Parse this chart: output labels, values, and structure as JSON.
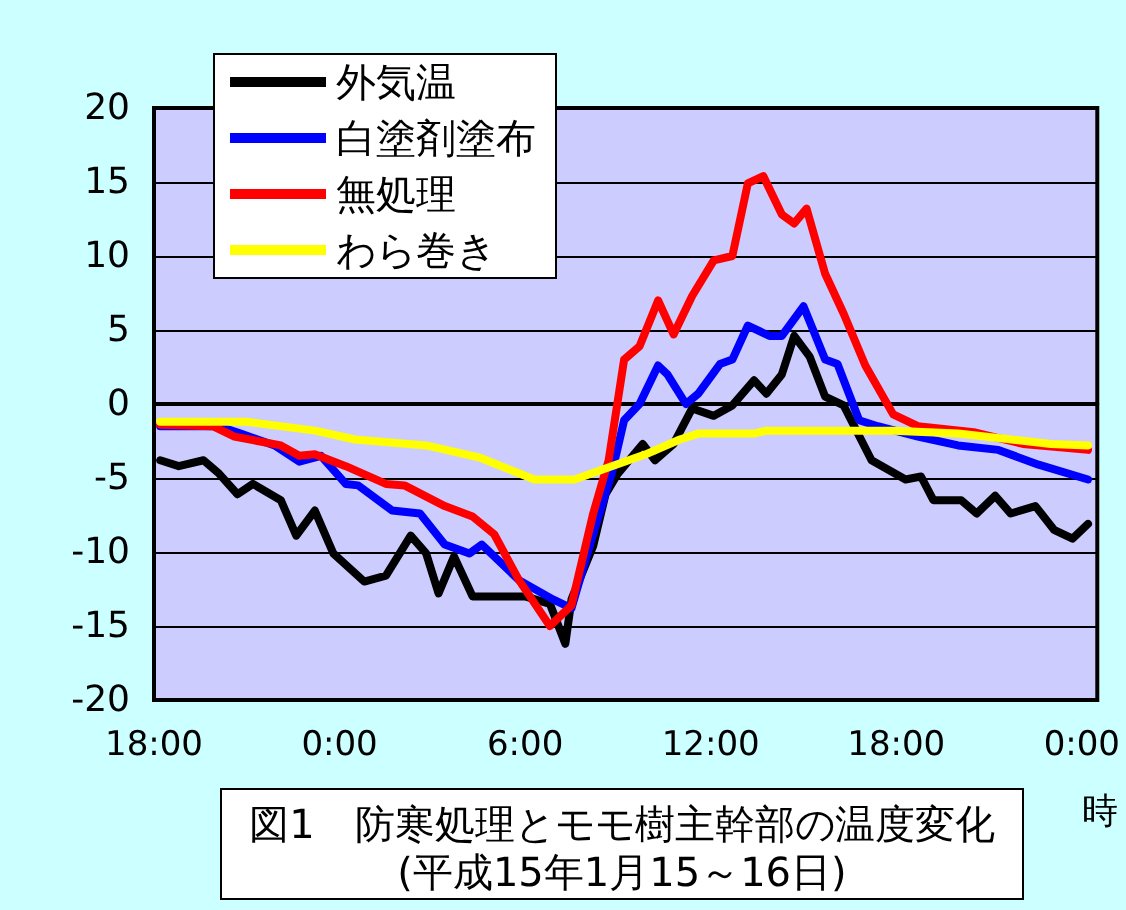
{
  "chart_data": {
    "type": "line",
    "title": "図1　防寒処理とモモ樹主幹部の温度変化",
    "subtitle": "(平成15年1月15～16日)",
    "xlabel": "時",
    "xlim": [
      "--01-15T18:00",
      "--01-17T00:30"
    ],
    "xticks": [
      {
        "value": "--01-15T18:00",
        "label": "18:00"
      },
      {
        "value": "--01-16T00:00",
        "label": "0:00"
      },
      {
        "value": "--01-16T06:00",
        "label": "6:00"
      },
      {
        "value": "--01-16T12:00",
        "label": "12:00"
      },
      {
        "value": "--01-16T18:00",
        "label": "18:00"
      },
      {
        "value": "--01-17T00:00",
        "label": "0:00"
      }
    ],
    "ylim": [
      -20,
      20
    ],
    "yticks": [
      -20,
      -15,
      -10,
      -5,
      0,
      5,
      10,
      15,
      20
    ],
    "grid": "y",
    "legend": "top left",
    "marker": "none",
    "line_style": "solid",
    "series": [
      {
        "name": "外気温",
        "color": "#000000",
        "x": [
          "--01-15T18:12",
          "--01-15T18:48",
          "--01-15T19:36",
          "--01-15T20:06",
          "--01-15T20:42",
          "--01-15T21:12",
          "--01-15T22:06",
          "--01-15T22:36",
          "--01-15T23:12",
          "--01-15T23:48",
          "--01-16T00:48",
          "--01-16T01:30",
          "--01-16T02:18",
          "--01-16T02:48",
          "--01-16T03:12",
          "--01-16T03:42",
          "--01-16T04:18",
          "--01-16T06:00",
          "--01-16T06:48",
          "--01-16T07:18",
          "--01-16T07:30",
          "--01-16T08:12",
          "--01-16T08:36",
          "--01-16T09:00",
          "--01-16T09:48",
          "--01-16T10:12",
          "--01-16T10:48",
          "--01-16T11:24",
          "--01-16T12:06",
          "--01-16T12:42",
          "--01-16T13:24",
          "--01-16T13:48",
          "--01-16T14:18",
          "--01-16T14:42",
          "--01-16T15:12",
          "--01-16T15:42",
          "--01-16T16:18",
          "--01-16T17:12",
          "--01-16T18:18",
          "--01-16T18:48",
          "--01-16T19:12",
          "--01-16T20:06",
          "--01-16T20:36",
          "--01-16T21:12",
          "--01-16T21:42",
          "--01-16T22:30",
          "--01-16T23:06",
          "--01-16T23:42",
          "--01-17T00:12"
        ],
        "values": [
          -3.8,
          -4.2,
          -3.8,
          -4.7,
          -6.1,
          -5.4,
          -6.5,
          -8.9,
          -7.2,
          -10.1,
          -12.0,
          -11.6,
          -8.9,
          -10.1,
          -12.8,
          -10.3,
          -13.0,
          -13.0,
          -13.5,
          -16.2,
          -13.2,
          -9.6,
          -6.1,
          -4.7,
          -2.7,
          -3.8,
          -2.7,
          -0.3,
          -0.8,
          -0.1,
          1.6,
          0.7,
          2.0,
          4.6,
          3.2,
          0.5,
          -0.1,
          -3.8,
          -5.1,
          -4.9,
          -6.5,
          -6.5,
          -7.4,
          -6.2,
          -7.4,
          -6.9,
          -8.5,
          -9.1,
          -8.1
        ]
      },
      {
        "name": "白塗剤塗布",
        "color": "#0000ff",
        "x": [
          "--01-15T18:12",
          "--01-15T20:06",
          "--01-15T20:48",
          "--01-15T21:54",
          "--01-15T22:42",
          "--01-15T23:24",
          "--01-16T00:12",
          "--01-16T00:36",
          "--01-16T01:42",
          "--01-16T02:36",
          "--01-16T03:24",
          "--01-16T04:12",
          "--01-16T04:36",
          "--01-16T05:48",
          "--01-16T06:54",
          "--01-16T07:30",
          "--01-16T08:12",
          "--01-16T08:48",
          "--01-16T09:12",
          "--01-16T09:42",
          "--01-16T10:18",
          "--01-16T10:36",
          "--01-16T11:12",
          "--01-16T11:36",
          "--01-16T12:18",
          "--01-16T12:42",
          "--01-16T13:12",
          "--01-16T13:54",
          "--01-16T14:18",
          "--01-16T15:00",
          "--01-16T15:42",
          "--01-16T16:06",
          "--01-16T16:48",
          "--01-16T17:24",
          "--01-16T18:42",
          "--01-16T20:00",
          "--01-16T21:18",
          "--01-16T22:36",
          "--01-17T00:12"
        ],
        "values": [
          -1.5,
          -1.5,
          -2.0,
          -2.8,
          -3.9,
          -3.5,
          -5.4,
          -5.5,
          -7.2,
          -7.4,
          -9.5,
          -10.1,
          -9.5,
          -11.9,
          -13.2,
          -13.8,
          -8.8,
          -4.7,
          -1.1,
          0,
          2.6,
          2.0,
          0,
          0.7,
          2.7,
          3.0,
          5.3,
          4.6,
          4.6,
          6.6,
          3.0,
          2.7,
          -1.1,
          -1.5,
          -2.2,
          -2.8,
          -3.1,
          -4.1,
          -5.1
        ]
      },
      {
        "name": "無処理",
        "color": "#ff0000",
        "x": [
          "--01-15T18:12",
          "--01-15T19:54",
          "--01-15T20:36",
          "--01-15T22:06",
          "--01-15T22:42",
          "--01-15T23:12",
          "--01-16T00:12",
          "--01-16T01:30",
          "--01-16T02:06",
          "--01-16T03:24",
          "--01-16T04:18",
          "--01-16T05:00",
          "--01-16T05:48",
          "--01-16T06:48",
          "--01-16T07:30",
          "--01-16T08:12",
          "--01-16T08:42",
          "--01-16T09:12",
          "--01-16T09:42",
          "--01-16T10:18",
          "--01-16T10:48",
          "--01-16T11:24",
          "--01-16T12:06",
          "--01-16T12:42",
          "--01-16T13:12",
          "--01-16T13:42",
          "--01-16T14:18",
          "--01-16T14:42",
          "--01-16T15:06",
          "--01-16T15:42",
          "--01-16T16:18",
          "--01-16T17:00",
          "--01-16T17:54",
          "--01-16T18:42",
          "--01-16T20:30",
          "--01-16T22:06",
          "--01-17T00:12"
        ],
        "values": [
          -1.4,
          -1.5,
          -2.2,
          -2.8,
          -3.5,
          -3.4,
          -4.2,
          -5.4,
          -5.5,
          -6.9,
          -7.6,
          -8.8,
          -11.9,
          -15.0,
          -13.6,
          -7.4,
          -3.8,
          3.0,
          3.9,
          7.0,
          4.7,
          7.3,
          9.7,
          10.0,
          14.9,
          15.4,
          12.8,
          12.2,
          13.2,
          8.8,
          6.1,
          2.6,
          -0.7,
          -1.5,
          -1.9,
          -2.7,
          -3.1
        ]
      },
      {
        "name": "わら巻き",
        "color": "#ffff00",
        "x": [
          "--01-15T18:12",
          "--01-15T21:00",
          "--01-15T23:12",
          "--01-16T00:30",
          "--01-16T02:48",
          "--01-16T04:30",
          "--01-16T06:18",
          "--01-16T07:36",
          "--01-16T08:48",
          "--01-16T09:54",
          "--01-16T11:00",
          "--01-16T11:36",
          "--01-16T13:24",
          "--01-16T13:48",
          "--01-16T17:54",
          "--01-16T20:00",
          "--01-16T23:00",
          "--01-17T00:12"
        ],
        "values": [
          -1.2,
          -1.2,
          -1.8,
          -2.4,
          -2.8,
          -3.6,
          -5.1,
          -5.1,
          -4.2,
          -3.4,
          -2.4,
          -2.0,
          -2.0,
          -1.8,
          -1.8,
          -2.0,
          -2.7,
          -2.8
        ]
      }
    ]
  }
}
